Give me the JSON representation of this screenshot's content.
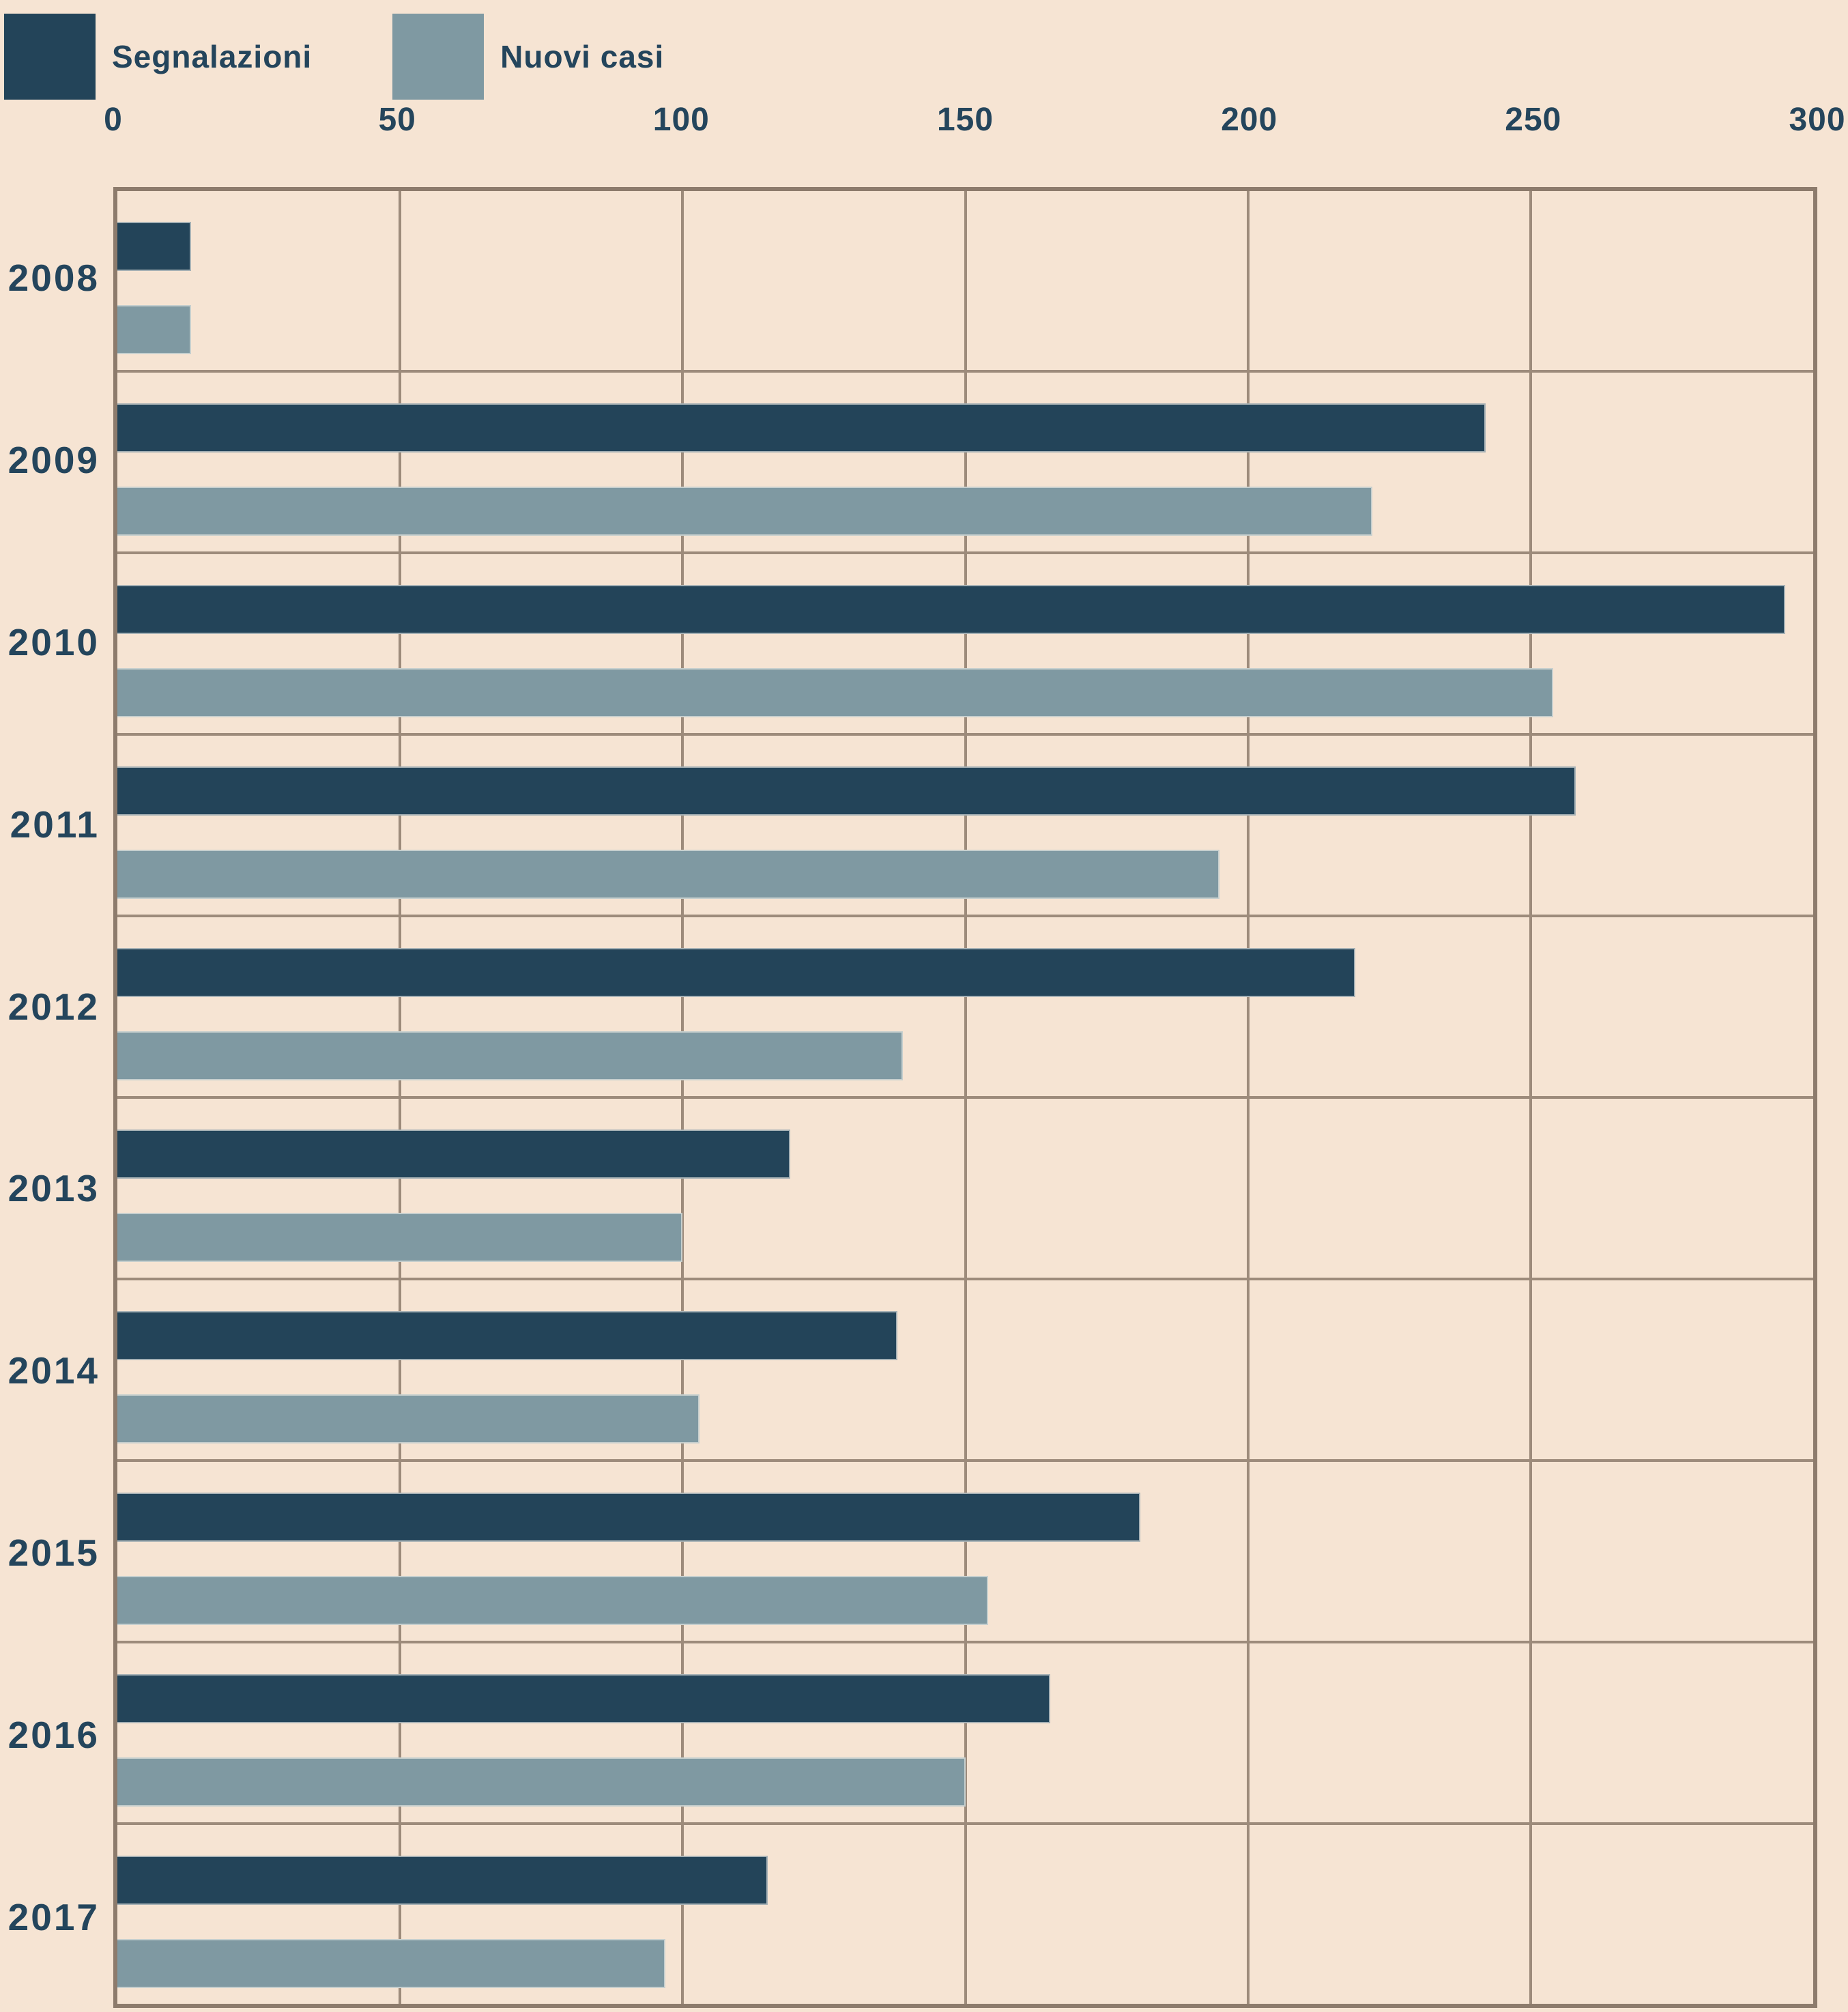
{
  "chart_data": {
    "type": "bar",
    "orientation": "horizontal",
    "categories": [
      "2008",
      "2009",
      "2010",
      "2011",
      "2012",
      "2013",
      "2014",
      "2015",
      "2016",
      "2017"
    ],
    "series": [
      {
        "name": "Segnalazioni",
        "color": "#234459",
        "values": [
          13,
          242,
          295,
          258,
          219,
          119,
          138,
          181,
          165,
          115
        ]
      },
      {
        "name": "Nuovi casi",
        "color": "#7f99a2",
        "values": [
          13,
          222,
          254,
          195,
          139,
          100,
          103,
          154,
          150,
          97
        ]
      }
    ],
    "xlim": [
      0,
      300
    ],
    "x_ticks": [
      "0",
      "50",
      "100",
      "150",
      "200",
      "250",
      "300"
    ],
    "x_tick_values": [
      0,
      50,
      100,
      150,
      200,
      250,
      300
    ],
    "axis_position": "top",
    "legend_position": "top-left",
    "grid": {
      "vertical": true,
      "horizontal_row_borders": true
    }
  },
  "theme": {
    "background": "#f6e4d3",
    "grid_color": "#9d8b7b",
    "border_color": "#8d7b6c",
    "text_color": "#24455c",
    "bar_outline": "rgba(236,236,230,0.65)"
  }
}
